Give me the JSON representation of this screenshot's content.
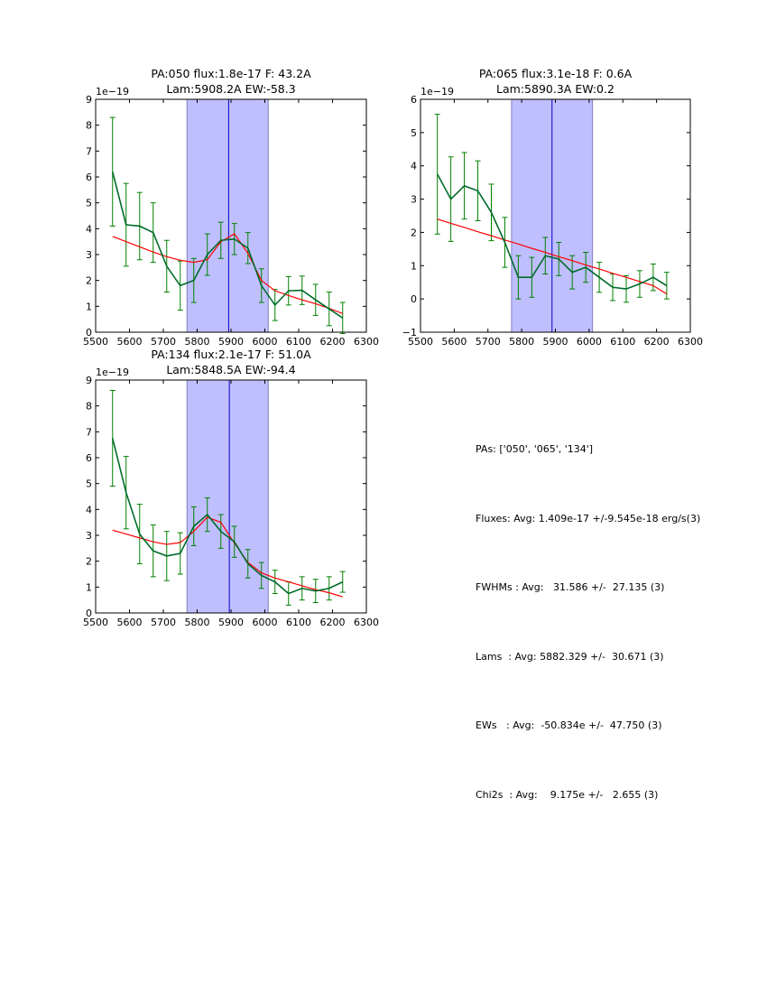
{
  "colors": {
    "band": "#bfbfff",
    "band_edge": "#7f7fbf",
    "center_line": "#0000cc",
    "data": "#006b2a",
    "errbar": "#008000",
    "fit": "#ff0000"
  },
  "chart_data": [
    {
      "type": "line",
      "title_lines": [
        "PA:050 flux:1.8e-17 F: 43.2A",
        "Lam:5908.2A EW:-58.3"
      ],
      "offset_label": "1e−19",
      "xlim": [
        5500,
        6300
      ],
      "ylim": [
        0,
        9
      ],
      "xticks": [
        5500,
        5600,
        5700,
        5800,
        5900,
        6000,
        6100,
        6200,
        6300
      ],
      "yticks": [
        0,
        1,
        2,
        3,
        4,
        5,
        6,
        7,
        8,
        9
      ],
      "band": [
        5770,
        6010
      ],
      "center": 5893,
      "x": [
        5550,
        5590,
        5630,
        5670,
        5710,
        5750,
        5790,
        5830,
        5870,
        5910,
        5950,
        5990,
        6030,
        6070,
        6110,
        6150,
        6190,
        6230
      ],
      "series": [
        {
          "name": "data",
          "values": [
            6.2,
            4.15,
            4.1,
            3.85,
            2.55,
            1.8,
            2.0,
            3.0,
            3.55,
            3.6,
            3.25,
            1.8,
            1.05,
            1.6,
            1.62,
            1.25,
            0.9,
            0.55
          ],
          "errors": [
            2.1,
            1.6,
            1.3,
            1.15,
            1.0,
            0.95,
            0.85,
            0.8,
            0.7,
            0.6,
            0.6,
            0.65,
            0.6,
            0.55,
            0.55,
            0.6,
            0.65,
            0.6
          ]
        },
        {
          "name": "fit",
          "values": [
            3.7,
            3.5,
            3.3,
            3.1,
            2.92,
            2.78,
            2.7,
            2.8,
            3.5,
            3.8,
            3.05,
            2.0,
            1.6,
            1.42,
            1.25,
            1.1,
            0.92,
            0.72
          ]
        }
      ]
    },
    {
      "type": "line",
      "title_lines": [
        "PA:065 flux:3.1e-18 F: 0.6A",
        "Lam:5890.3A EW:0.2"
      ],
      "offset_label": "1e−19",
      "xlim": [
        5500,
        6300
      ],
      "ylim": [
        -1,
        6
      ],
      "xticks": [
        5500,
        5600,
        5700,
        5800,
        5900,
        6000,
        6100,
        6200,
        6300
      ],
      "yticks": [
        -1,
        0,
        1,
        2,
        3,
        4,
        5,
        6
      ],
      "band": [
        5770,
        6010
      ],
      "center": 5890,
      "x": [
        5550,
        5590,
        5630,
        5670,
        5710,
        5750,
        5790,
        5830,
        5870,
        5910,
        5950,
        5990,
        6030,
        6070,
        6110,
        6150,
        6190,
        6230
      ],
      "series": [
        {
          "name": "data",
          "values": [
            3.75,
            3.0,
            3.4,
            3.25,
            2.6,
            1.7,
            0.65,
            0.65,
            1.3,
            1.2,
            0.8,
            0.95,
            0.65,
            0.35,
            0.3,
            0.45,
            0.65,
            0.4
          ],
          "errors": [
            1.8,
            1.27,
            1.0,
            0.9,
            0.85,
            0.75,
            0.65,
            0.6,
            0.55,
            0.5,
            0.5,
            0.45,
            0.45,
            0.4,
            0.4,
            0.4,
            0.4,
            0.4
          ]
        },
        {
          "name": "fit",
          "values": [
            2.4,
            2.27,
            2.15,
            2.02,
            1.9,
            1.77,
            1.65,
            1.52,
            1.4,
            1.27,
            1.15,
            1.02,
            0.9,
            0.77,
            0.65,
            0.52,
            0.4,
            0.15
          ]
        }
      ]
    },
    {
      "type": "line",
      "title_lines": [
        "PA:134 flux:2.1e-17 F: 51.0A",
        "Lam:5848.5A EW:-94.4"
      ],
      "offset_label": "1e−19",
      "xlim": [
        5500,
        6300
      ],
      "ylim": [
        0,
        9
      ],
      "xticks": [
        5500,
        5600,
        5700,
        5800,
        5900,
        6000,
        6100,
        6200,
        6300
      ],
      "yticks": [
        0,
        1,
        2,
        3,
        4,
        5,
        6,
        7,
        8,
        9
      ],
      "band": [
        5770,
        6010
      ],
      "center": 5895,
      "x": [
        5550,
        5590,
        5630,
        5670,
        5710,
        5750,
        5790,
        5830,
        5870,
        5910,
        5950,
        5990,
        6030,
        6070,
        6110,
        6150,
        6190,
        6230
      ],
      "series": [
        {
          "name": "data",
          "values": [
            6.75,
            4.65,
            3.05,
            2.4,
            2.2,
            2.3,
            3.35,
            3.8,
            3.15,
            2.75,
            1.9,
            1.45,
            1.2,
            0.75,
            0.95,
            0.85,
            0.95,
            1.2
          ],
          "errors": [
            1.85,
            1.4,
            1.15,
            1.0,
            0.95,
            0.8,
            0.75,
            0.65,
            0.65,
            0.6,
            0.55,
            0.5,
            0.45,
            0.45,
            0.45,
            0.45,
            0.45,
            0.4
          ]
        },
        {
          "name": "fit",
          "values": [
            3.2,
            3.05,
            2.9,
            2.75,
            2.65,
            2.72,
            3.15,
            3.7,
            3.5,
            2.7,
            1.95,
            1.55,
            1.35,
            1.2,
            1.05,
            0.9,
            0.78,
            0.62
          ]
        }
      ]
    }
  ],
  "stats": [
    "PAs: ['050', '065', '134']",
    "Fluxes: Avg: 1.409e-17 +/-9.545e-18 erg/s(3)",
    "FWHMs : Avg:   31.586 +/-  27.135 (3)",
    "Lams  : Avg: 5882.329 +/-  30.671 (3)",
    "EWs   : Avg:  -50.834e +/-  47.750 (3)",
    "Chi2s  : Avg:    9.175e +/-   2.655 (3)"
  ]
}
